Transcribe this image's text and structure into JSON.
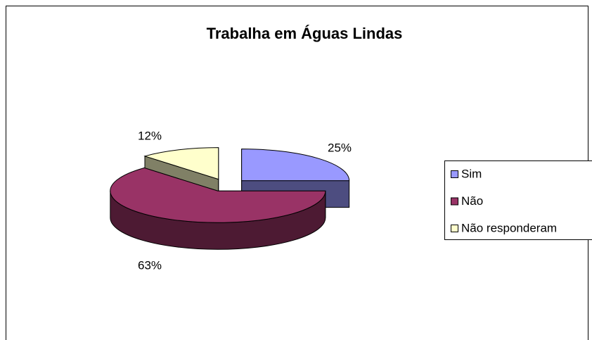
{
  "chart_data": {
    "type": "pie",
    "title": "Trabalha em Águas Lindas",
    "categories": [
      "Sim",
      "Não",
      "Não responderam"
    ],
    "values": [
      25,
      63,
      12
    ],
    "value_labels": [
      "25%",
      "63%",
      "12%"
    ],
    "colors": [
      "#9999ff",
      "#993366",
      "#ffffcc"
    ],
    "legend": "right"
  }
}
